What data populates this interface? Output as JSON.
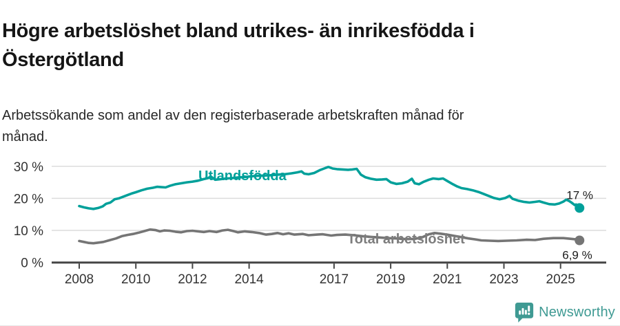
{
  "header": {
    "title_line1": "Högre arbetslöshet bland utrikes- än inrikesfödda i",
    "title_line2": "Östergötland",
    "subtitle_line1": "Arbetssökande som andel av den registerbaserade arbetskraften månad för",
    "subtitle_line2": "månad."
  },
  "footer": {
    "brand": "Newsworthy"
  },
  "colors": {
    "series1": "#00a09a",
    "series1_label": "#00a09a",
    "series2": "#757575",
    "series2_label": "#7d7d7d",
    "grid": "#dcdcdc",
    "axis": "#454545",
    "tick_label": "#333333",
    "value_label": "#1a1a1a",
    "brand_teal": "#3f9a93"
  },
  "chart_data": {
    "type": "line",
    "title": "Högre arbetslöshet bland utrikes- än inrikesfödda i Östergötland",
    "subtitle": "Arbetssökande som andel av den registerbaserade arbetskraften månad för månad.",
    "x_unit": "decimal year (monthly series)",
    "xlim": [
      2008,
      2025.9
    ],
    "ylim": [
      0,
      32
    ],
    "grid": true,
    "legend_position": "inline-labels",
    "y_ticks": [
      {
        "value": 0,
        "label": "0 %"
      },
      {
        "value": 10,
        "label": "10 %"
      },
      {
        "value": 20,
        "label": "20 %"
      },
      {
        "value": 30,
        "label": "30 %"
      }
    ],
    "x_ticks": [
      {
        "value": 2008,
        "label": "2008"
      },
      {
        "value": 2010,
        "label": "2010"
      },
      {
        "value": 2012,
        "label": "2012"
      },
      {
        "value": 2014,
        "label": "2014"
      },
      {
        "value": 2017,
        "label": "2017"
      },
      {
        "value": 2019,
        "label": "2019"
      },
      {
        "value": 2021,
        "label": "2021"
      },
      {
        "value": 2023,
        "label": "2023"
      },
      {
        "value": 2025,
        "label": "2025"
      }
    ],
    "series": [
      {
        "name": "Utlandsfödda",
        "end_label": "17 %",
        "end_value": 17.0,
        "points": [
          [
            2008.0,
            17.6
          ],
          [
            2008.17,
            17.2
          ],
          [
            2008.33,
            16.9
          ],
          [
            2008.5,
            16.7
          ],
          [
            2008.67,
            17.0
          ],
          [
            2008.83,
            17.5
          ],
          [
            2008.95,
            18.3
          ],
          [
            2009.1,
            18.7
          ],
          [
            2009.25,
            19.7
          ],
          [
            2009.4,
            20.0
          ],
          [
            2009.55,
            20.5
          ],
          [
            2009.7,
            21.0
          ],
          [
            2009.85,
            21.5
          ],
          [
            2010.0,
            21.9
          ],
          [
            2010.2,
            22.5
          ],
          [
            2010.4,
            23.0
          ],
          [
            2010.6,
            23.3
          ],
          [
            2010.75,
            23.6
          ],
          [
            2010.9,
            23.5
          ],
          [
            2011.05,
            23.4
          ],
          [
            2011.2,
            23.9
          ],
          [
            2011.4,
            24.4
          ],
          [
            2011.6,
            24.7
          ],
          [
            2011.8,
            25.0
          ],
          [
            2012.0,
            25.2
          ],
          [
            2012.2,
            25.5
          ],
          [
            2012.4,
            26.0
          ],
          [
            2012.55,
            26.3
          ],
          [
            2012.65,
            26.8
          ],
          [
            2012.8,
            25.8
          ],
          [
            2013.0,
            26.0
          ],
          [
            2013.2,
            26.2
          ],
          [
            2013.4,
            26.3
          ],
          [
            2013.6,
            26.5
          ],
          [
            2013.8,
            26.6
          ],
          [
            2014.0,
            26.8
          ],
          [
            2014.25,
            27.0
          ],
          [
            2014.5,
            27.1
          ],
          [
            2014.75,
            27.2
          ],
          [
            2015.0,
            27.4
          ],
          [
            2015.25,
            27.5
          ],
          [
            2015.5,
            27.8
          ],
          [
            2015.7,
            28.1
          ],
          [
            2015.85,
            28.4
          ],
          [
            2015.95,
            27.7
          ],
          [
            2016.1,
            27.5
          ],
          [
            2016.3,
            27.9
          ],
          [
            2016.5,
            28.8
          ],
          [
            2016.65,
            29.3
          ],
          [
            2016.8,
            29.8
          ],
          [
            2016.95,
            29.3
          ],
          [
            2017.1,
            29.1
          ],
          [
            2017.3,
            29.0
          ],
          [
            2017.5,
            28.9
          ],
          [
            2017.65,
            29.0
          ],
          [
            2017.8,
            29.2
          ],
          [
            2017.95,
            27.4
          ],
          [
            2018.1,
            26.6
          ],
          [
            2018.3,
            26.1
          ],
          [
            2018.5,
            25.8
          ],
          [
            2018.7,
            25.9
          ],
          [
            2018.85,
            26.0
          ],
          [
            2019.0,
            25.0
          ],
          [
            2019.2,
            24.5
          ],
          [
            2019.4,
            24.7
          ],
          [
            2019.6,
            25.2
          ],
          [
            2019.75,
            26.1
          ],
          [
            2019.85,
            24.7
          ],
          [
            2020.0,
            24.4
          ],
          [
            2020.15,
            25.1
          ],
          [
            2020.35,
            25.8
          ],
          [
            2020.5,
            26.2
          ],
          [
            2020.7,
            26.0
          ],
          [
            2020.85,
            26.2
          ],
          [
            2021.0,
            25.4
          ],
          [
            2021.2,
            24.4
          ],
          [
            2021.35,
            23.7
          ],
          [
            2021.5,
            23.2
          ],
          [
            2021.7,
            22.9
          ],
          [
            2021.9,
            22.5
          ],
          [
            2022.1,
            22.0
          ],
          [
            2022.25,
            21.5
          ],
          [
            2022.45,
            20.8
          ],
          [
            2022.65,
            20.1
          ],
          [
            2022.85,
            19.7
          ],
          [
            2023.05,
            20.1
          ],
          [
            2023.2,
            20.8
          ],
          [
            2023.3,
            19.9
          ],
          [
            2023.5,
            19.3
          ],
          [
            2023.7,
            18.9
          ],
          [
            2023.9,
            18.7
          ],
          [
            2024.1,
            18.9
          ],
          [
            2024.25,
            19.1
          ],
          [
            2024.4,
            18.7
          ],
          [
            2024.6,
            18.2
          ],
          [
            2024.8,
            18.1
          ],
          [
            2024.95,
            18.4
          ],
          [
            2025.1,
            19.0
          ],
          [
            2025.2,
            19.6
          ],
          [
            2025.3,
            19.2
          ],
          [
            2025.4,
            18.6
          ],
          [
            2025.5,
            17.9
          ],
          [
            2025.55,
            18.1
          ],
          [
            2025.62,
            17.4
          ],
          [
            2025.67,
            17.0
          ]
        ]
      },
      {
        "name": "Total arbetslöshet",
        "end_label": "6,9 %",
        "end_value": 6.9,
        "points": [
          [
            2008.0,
            6.7
          ],
          [
            2008.17,
            6.4
          ],
          [
            2008.33,
            6.1
          ],
          [
            2008.5,
            6.0
          ],
          [
            2008.67,
            6.2
          ],
          [
            2008.85,
            6.4
          ],
          [
            2009.05,
            6.9
          ],
          [
            2009.3,
            7.5
          ],
          [
            2009.5,
            8.2
          ],
          [
            2009.7,
            8.6
          ],
          [
            2009.9,
            8.9
          ],
          [
            2010.1,
            9.3
          ],
          [
            2010.3,
            9.8
          ],
          [
            2010.5,
            10.3
          ],
          [
            2010.7,
            10.1
          ],
          [
            2010.85,
            9.7
          ],
          [
            2011.0,
            10.0
          ],
          [
            2011.2,
            9.9
          ],
          [
            2011.4,
            9.6
          ],
          [
            2011.6,
            9.4
          ],
          [
            2011.8,
            9.8
          ],
          [
            2012.0,
            9.9
          ],
          [
            2012.2,
            9.7
          ],
          [
            2012.4,
            9.5
          ],
          [
            2012.6,
            9.8
          ],
          [
            2012.85,
            9.5
          ],
          [
            2013.05,
            10.0
          ],
          [
            2013.25,
            10.2
          ],
          [
            2013.45,
            9.8
          ],
          [
            2013.6,
            9.4
          ],
          [
            2013.85,
            9.7
          ],
          [
            2014.1,
            9.5
          ],
          [
            2014.35,
            9.2
          ],
          [
            2014.6,
            8.7
          ],
          [
            2014.8,
            8.9
          ],
          [
            2015.0,
            9.2
          ],
          [
            2015.2,
            8.8
          ],
          [
            2015.4,
            9.1
          ],
          [
            2015.6,
            8.7
          ],
          [
            2015.9,
            8.9
          ],
          [
            2016.1,
            8.5
          ],
          [
            2016.4,
            8.7
          ],
          [
            2016.6,
            8.8
          ],
          [
            2016.9,
            8.4
          ],
          [
            2017.1,
            8.6
          ],
          [
            2017.4,
            8.7
          ],
          [
            2017.7,
            8.5
          ],
          [
            2018.0,
            8.2
          ],
          [
            2018.3,
            8.0
          ],
          [
            2018.6,
            7.8
          ],
          [
            2018.9,
            7.6
          ],
          [
            2019.2,
            7.5
          ],
          [
            2019.5,
            7.3
          ],
          [
            2019.8,
            7.3
          ],
          [
            2020.1,
            7.8
          ],
          [
            2020.35,
            8.8
          ],
          [
            2020.55,
            9.2
          ],
          [
            2020.75,
            9.0
          ],
          [
            2021.0,
            8.7
          ],
          [
            2021.25,
            8.3
          ],
          [
            2021.5,
            7.9
          ],
          [
            2021.75,
            7.5
          ],
          [
            2022.0,
            7.2
          ],
          [
            2022.2,
            6.9
          ],
          [
            2022.5,
            6.8
          ],
          [
            2022.8,
            6.7
          ],
          [
            2023.1,
            6.8
          ],
          [
            2023.45,
            6.9
          ],
          [
            2023.8,
            7.1
          ],
          [
            2024.1,
            7.0
          ],
          [
            2024.4,
            7.4
          ],
          [
            2024.75,
            7.6
          ],
          [
            2025.1,
            7.6
          ],
          [
            2025.35,
            7.4
          ],
          [
            2025.55,
            7.2
          ],
          [
            2025.67,
            6.9
          ]
        ]
      }
    ]
  }
}
